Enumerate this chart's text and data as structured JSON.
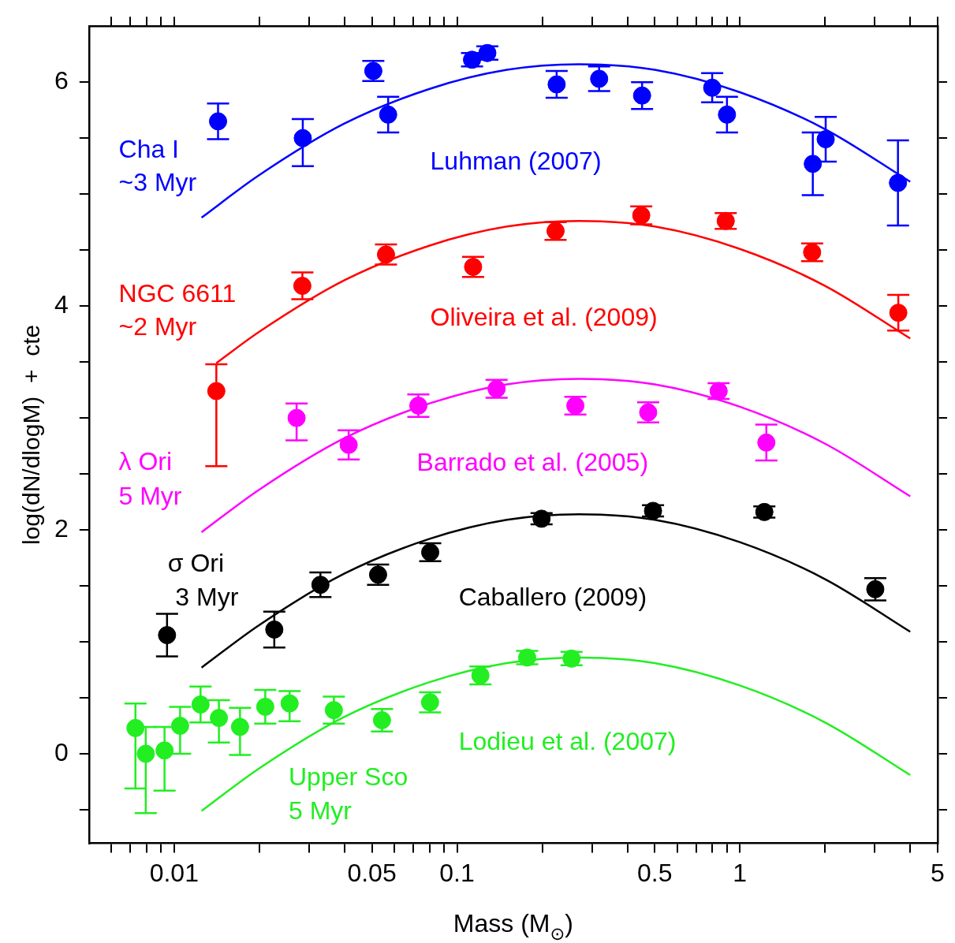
{
  "chart_data": {
    "type": "scatter",
    "xlabel": "Mass (M$_{⊙}$)",
    "ylabel": "log(dN/dlogM)  +  cte",
    "log": "x",
    "grid": false,
    "legend": false,
    "marker": "circle",
    "xlim": [
      0.005,
      5
    ],
    "ylim": [
      -0.8,
      6.5
    ],
    "xticks": [
      {
        "value": 0.006,
        "label": null
      },
      {
        "value": 0.007,
        "label": null
      },
      {
        "value": 0.008,
        "label": null
      },
      {
        "value": 0.009,
        "label": null
      },
      0.01,
      {
        "value": 0.02,
        "label": null
      },
      {
        "value": 0.03,
        "label": null
      },
      {
        "value": 0.04,
        "label": null
      },
      0.05,
      {
        "value": 0.06,
        "label": null
      },
      {
        "value": 0.07,
        "label": null
      },
      {
        "value": 0.08,
        "label": null
      },
      {
        "value": 0.09,
        "label": null
      },
      0.1,
      {
        "value": 0.2,
        "label": null
      },
      {
        "value": 0.3,
        "label": null
      },
      {
        "value": 0.4,
        "label": null
      },
      0.5,
      {
        "value": 0.6,
        "label": null
      },
      {
        "value": 0.7,
        "label": null
      },
      {
        "value": 0.8,
        "label": null
      },
      {
        "value": 0.9,
        "label": null
      },
      1,
      {
        "value": 2,
        "label": null
      },
      {
        "value": 3,
        "label": null
      },
      {
        "value": 4,
        "label": null
      },
      5
    ],
    "yticks": [
      {
        "value": -0.5,
        "label": null
      },
      0,
      {
        "value": 0.5,
        "label": null
      },
      {
        "value": 1,
        "label": null
      },
      {
        "value": 1.5,
        "label": null
      },
      2,
      {
        "value": 2.5,
        "label": null
      },
      {
        "value": 3,
        "label": null
      },
      {
        "value": 3.5,
        "label": null
      },
      4,
      {
        "value": 4.5,
        "label": null
      },
      {
        "value": 5,
        "label": null
      },
      {
        "value": 5.5,
        "label": null
      },
      6
    ],
    "series": [
      {
        "color": "#0000ff",
        "x": [
          0.0143,
          0.0285,
          0.0506,
          0.0571,
          0.113,
          0.128,
          0.225,
          0.318,
          0.451,
          0.798,
          0.9,
          1.81,
          2.01,
          3.62
        ],
        "values": [
          5.65,
          5.5,
          6.1,
          5.71,
          6.2,
          6.26,
          5.98,
          6.03,
          5.88,
          5.95,
          5.71,
          5.27,
          5.49,
          5.1
        ],
        "errors": [
          0.16,
          [
            5.25,
            5.67
          ],
          0.09,
          0.16,
          0.06,
          0.06,
          0.12,
          0.11,
          0.12,
          0.13,
          0.16,
          0.28,
          0.2,
          0.38
        ]
      },
      {
        "type": "line",
        "marker": "none",
        "color": "#0000ff",
        "x": [
          0.0125,
          0.02,
          0.04,
          0.08,
          0.15,
          0.27,
          0.5,
          1,
          2,
          4
        ],
        "values": [
          4.79,
          5.17,
          5.63,
          5.94,
          6.11,
          6.16,
          6.11,
          5.91,
          5.58,
          5.11
        ]
      },
      {
        "color": "#ff0000",
        "x": [
          0.0141,
          0.0284,
          0.0561,
          0.114,
          0.223,
          0.448,
          0.891,
          1.8,
          3.63
        ],
        "values": [
          3.24,
          4.18,
          4.46,
          4.35,
          4.67,
          4.81,
          4.76,
          4.48,
          3.94
        ],
        "errors": [
          [
            2.57,
            3.48
          ],
          0.12,
          0.09,
          0.09,
          0.08,
          0.08,
          0.07,
          0.08,
          0.16
        ]
      },
      {
        "type": "line",
        "marker": "none",
        "color": "#ff0000",
        "x": [
          0.0141,
          0.02,
          0.04,
          0.08,
          0.15,
          0.27,
          0.5,
          1,
          2,
          4
        ],
        "values": [
          3.49,
          3.77,
          4.23,
          4.54,
          4.71,
          4.76,
          4.71,
          4.51,
          4.18,
          3.71
        ]
      },
      {
        "color": "#ff00ff",
        "x": [
          0.0271,
          0.0414,
          0.073,
          0.138,
          0.262,
          0.474,
          0.841,
          1.24
        ],
        "values": [
          3.0,
          2.76,
          3.11,
          3.26,
          3.11,
          3.05,
          3.24,
          2.78
        ],
        "errors": [
          [
            2.8,
            3.13
          ],
          0.13,
          0.1,
          0.08,
          0.08,
          0.09,
          0.07,
          0.16
        ]
      },
      {
        "type": "line",
        "marker": "none",
        "color": "#ff00ff",
        "x": [
          0.0125,
          0.02,
          0.04,
          0.08,
          0.15,
          0.27,
          0.5,
          1,
          2,
          4
        ],
        "values": [
          1.98,
          2.36,
          2.82,
          3.13,
          3.3,
          3.35,
          3.3,
          3.1,
          2.77,
          2.3
        ]
      },
      {
        "color": "#000000",
        "x": [
          0.00944,
          0.0226,
          0.0329,
          0.0526,
          0.0804,
          0.199,
          0.493,
          1.22,
          3.01
        ],
        "values": [
          1.06,
          1.11,
          1.51,
          1.6,
          1.8,
          2.1,
          2.17,
          2.16,
          1.47
        ],
        "errors": [
          0.19,
          0.16,
          0.11,
          0.09,
          0.08,
          0.05,
          0.05,
          0.05,
          0.1
        ]
      },
      {
        "type": "line",
        "marker": "none",
        "color": "#000000",
        "x": [
          0.0125,
          0.02,
          0.04,
          0.08,
          0.15,
          0.27,
          0.5,
          1,
          2,
          4
        ],
        "values": [
          0.77,
          1.15,
          1.61,
          1.92,
          2.09,
          2.14,
          2.09,
          1.89,
          1.56,
          1.09
        ]
      },
      {
        "color": "#22ee22",
        "x": [
          0.0073,
          0.00794,
          0.00925,
          0.0105,
          0.0124,
          0.0144,
          0.0171,
          0.021,
          0.0256,
          0.0367,
          0.0543,
          0.0803,
          0.121,
          0.177,
          0.254
        ],
        "values": [
          0.23,
          0.0,
          0.03,
          0.25,
          0.44,
          0.32,
          0.24,
          0.42,
          0.45,
          0.39,
          0.3,
          0.46,
          0.7,
          0.86,
          0.85
        ],
        "errors": [
          [
            -0.31,
            0.45
          ],
          [
            -0.53,
            0.24
          ],
          [
            -0.33,
            0.24
          ],
          [
            0,
            0.42
          ],
          0.16,
          [
            0.1,
            0.48
          ],
          [
            -0.01,
            0.41
          ],
          0.15,
          [
            0.29,
            0.56
          ],
          0.12,
          0.1,
          0.09,
          0.08,
          0.06,
          0.06
        ]
      },
      {
        "type": "line",
        "marker": "none",
        "color": "#22ee22",
        "x": [
          0.0125,
          0.02,
          0.04,
          0.08,
          0.15,
          0.27,
          0.5,
          1,
          2,
          4
        ],
        "values": [
          -0.51,
          -0.13,
          0.33,
          0.64,
          0.81,
          0.86,
          0.81,
          0.61,
          0.28,
          -0.19
        ]
      }
    ],
    "annotations": [
      "Cha I",
      "~3 Myr",
      "Luhman (2007)",
      "NGC 6611",
      "~2 Myr",
      "Oliveira et al. (2009)",
      "λ Ori",
      "5 Myr",
      "Barrado et al. (2005)",
      "σ Ori",
      "3 Myr",
      "Caballero (2009)",
      "Lodieu et al. (2007)",
      "Upper Sco",
      "5 Myr"
    ]
  }
}
